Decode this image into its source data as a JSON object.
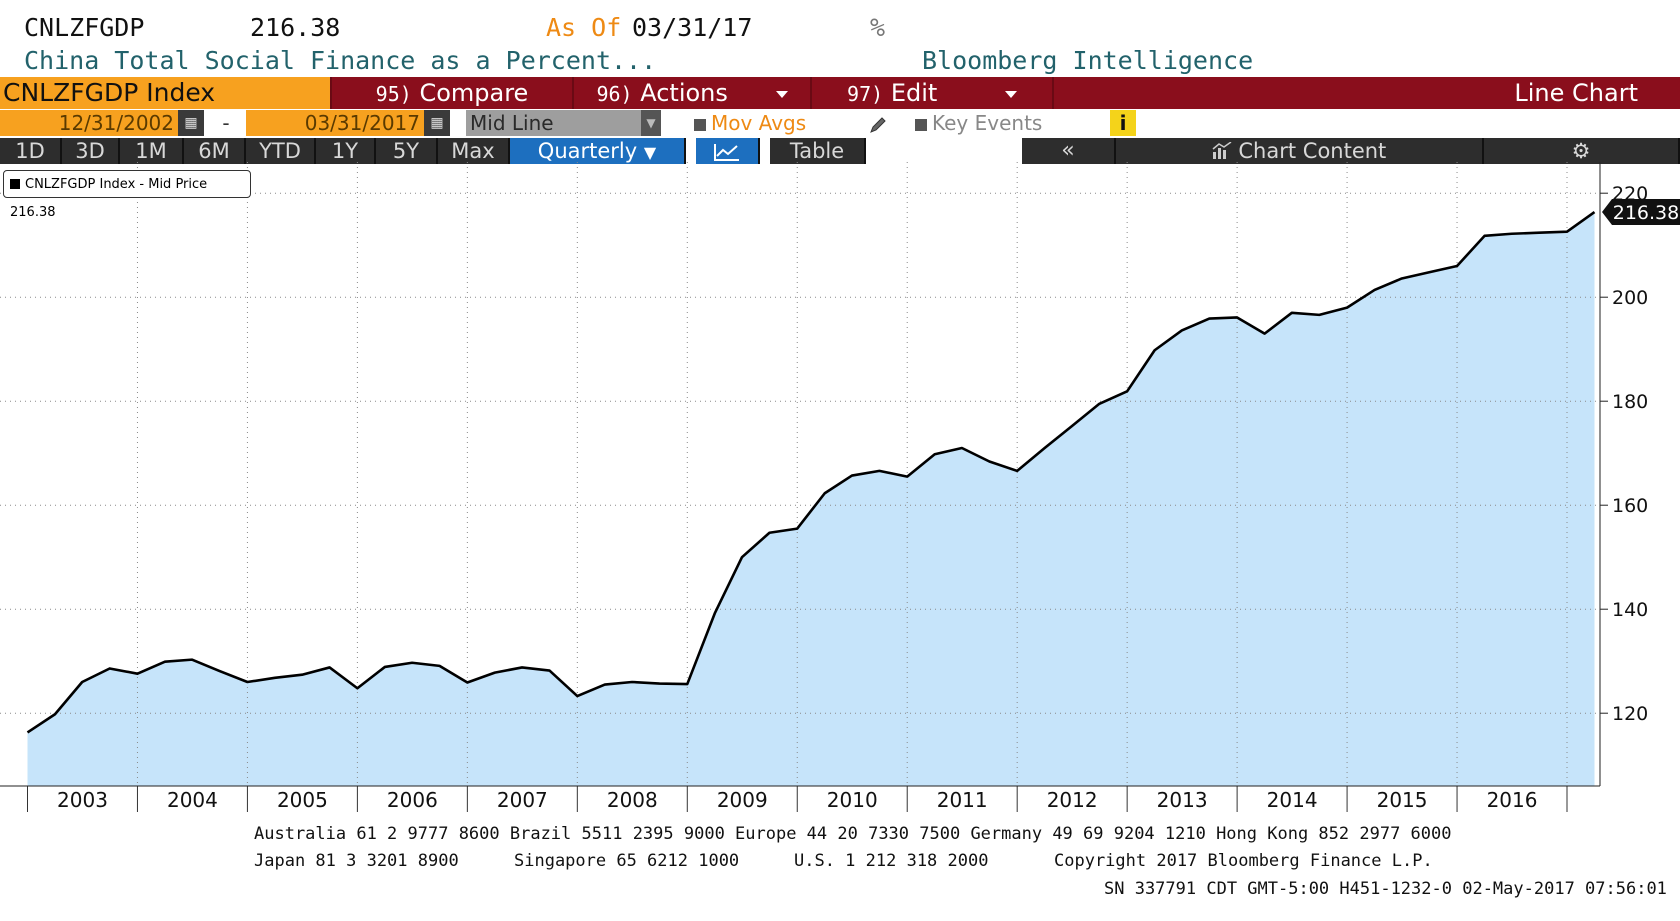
{
  "header": {
    "ticker": "CNLZFGDP",
    "last_value": "216.38",
    "as_of_label": "As Of",
    "as_of_date": "03/31/17",
    "unit": "%",
    "description": "China Total Social Finance as a Percent...",
    "source": "Bloomberg Intelligence"
  },
  "toolbar": {
    "index_label": "CNLZFGDP Index",
    "compare_num": "95)",
    "compare_label": "Compare",
    "actions_num": "96)",
    "actions_label": "Actions",
    "edit_num": "97)",
    "edit_label": "Edit",
    "chart_type": "Line Chart"
  },
  "date_range": {
    "start": "12/31/2002",
    "separator": "-",
    "end": "03/31/2017",
    "line_type": "Mid Line",
    "mov_avgs": "Mov Avgs",
    "key_events": "Key Events",
    "info_icon": "i"
  },
  "periods": [
    "1D",
    "3D",
    "1M",
    "6M",
    "YTD",
    "1Y",
    "5Y",
    "Max"
  ],
  "frequency": "Quarterly",
  "table_label": "Table",
  "collapse_label": "«",
  "chart_content_label": "Chart Content",
  "legend_label": "CNLZFGDP Index - Mid Price 216.38",
  "colors": {
    "area_fill": "#c6e4fa",
    "line": "#000000",
    "toolbar_red": "#8a0e1c",
    "orange": "#f7a11f",
    "active_blue": "#1d6fbf"
  },
  "chart_data": {
    "type": "area",
    "title": "",
    "xlabel": "",
    "ylabel": "",
    "ylim": [
      106,
      226
    ],
    "xlim": [
      2002.75,
      2017.3
    ],
    "y_ticks": [
      120,
      140,
      160,
      180,
      200,
      220
    ],
    "x_tick_labels": [
      "2003",
      "2004",
      "2005",
      "2006",
      "2007",
      "2008",
      "2009",
      "2010",
      "2011",
      "2012",
      "2013",
      "2014",
      "2015",
      "2016"
    ],
    "last_value_label": "216.38",
    "grid": true,
    "legend_position": "top-left",
    "series": [
      {
        "name": "CNLZFGDP Index - Mid Price",
        "x": [
          "12/31/2002",
          "03/31/2003",
          "06/30/2003",
          "09/30/2003",
          "12/31/2003",
          "03/31/2004",
          "06/30/2004",
          "09/30/2004",
          "12/31/2004",
          "03/31/2005",
          "06/30/2005",
          "09/30/2005",
          "12/31/2005",
          "03/31/2006",
          "06/30/2006",
          "09/30/2006",
          "12/31/2006",
          "03/31/2007",
          "06/30/2007",
          "09/30/2007",
          "12/31/2007",
          "03/31/2008",
          "06/30/2008",
          "09/30/2008",
          "12/31/2008",
          "03/31/2009",
          "06/30/2009",
          "09/30/2009",
          "12/31/2009",
          "03/31/2010",
          "06/30/2010",
          "09/30/2010",
          "12/31/2010",
          "03/31/2011",
          "06/30/2011",
          "09/30/2011",
          "12/31/2011",
          "03/31/2012",
          "06/30/2012",
          "09/30/2012",
          "12/31/2012",
          "03/31/2013",
          "06/30/2013",
          "09/30/2013",
          "12/31/2013",
          "03/31/2014",
          "06/30/2014",
          "09/30/2014",
          "12/31/2014",
          "03/31/2015",
          "06/30/2015",
          "09/30/2015",
          "12/31/2015",
          "03/31/2016",
          "06/30/2016",
          "09/30/2016",
          "12/31/2016",
          "03/31/2017"
        ],
        "values": [
          116.3,
          119.8,
          126.0,
          128.6,
          127.6,
          129.9,
          130.3,
          128.1,
          126.0,
          126.8,
          127.4,
          128.8,
          124.8,
          128.9,
          129.7,
          129.1,
          125.9,
          127.8,
          128.8,
          128.2,
          123.3,
          125.5,
          126.0,
          125.7,
          125.6,
          139.2,
          150.0,
          154.7,
          155.5,
          162.3,
          165.7,
          166.6,
          165.5,
          169.8,
          171.0,
          168.4,
          166.6,
          171.0,
          175.2,
          179.5,
          181.9,
          189.8,
          193.6,
          195.9,
          196.1,
          193.0,
          197.0,
          196.6,
          198.0,
          201.4,
          203.6,
          204.8,
          206.0,
          211.8,
          212.2,
          212.4,
          212.6,
          216.38
        ]
      }
    ]
  },
  "footer": {
    "line1": "Australia 61 2 9777 8600 Brazil 5511 2395 9000 Europe 44 20 7330 7500 Germany 49 69 9204 1210 Hong Kong 852 2977 6000",
    "japan": "Japan 81 3 3201 8900",
    "singapore": "Singapore 65 6212 1000",
    "us": "U.S. 1 212 318 2000",
    "copyright": "Copyright 2017 Bloomberg Finance L.P.",
    "line3": "SN 337791 CDT  GMT-5:00 H451-1232-0 02-May-2017 07:56:01"
  }
}
